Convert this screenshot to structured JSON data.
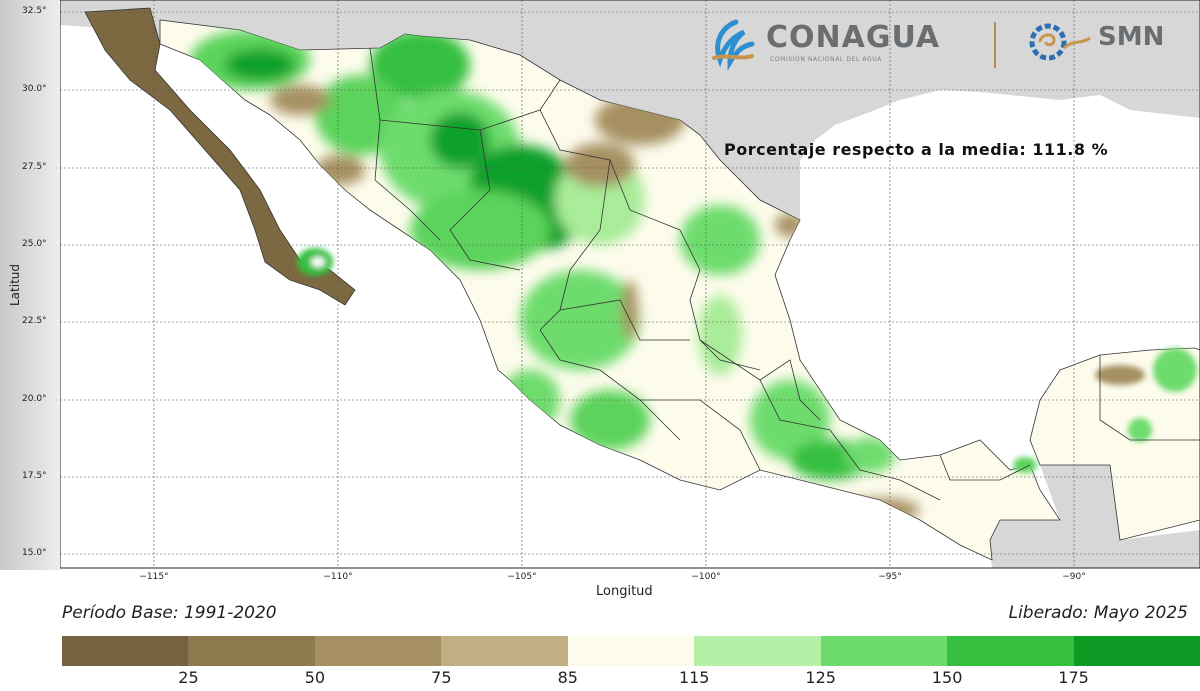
{
  "header": {
    "conagua": "CONAGUA",
    "conagua_subtitle": "COMISIÓN NACIONAL DEL AGUA",
    "smn": "SMN"
  },
  "annotation": "Porcentaje respecto a la media: 111.8 %",
  "axes": {
    "ylabel": "Latitud",
    "xlabel": "Longitud",
    "lat_ticks": [
      "32.5°",
      "30.0°",
      "27.5°",
      "25.0°",
      "22.5°",
      "20.0°",
      "17.5°",
      "15.0°"
    ],
    "lon_ticks": [
      "−115°",
      "−110°",
      "−105°",
      "−100°",
      "−95°",
      "−90°"
    ]
  },
  "footer": {
    "base_period": "Período Base: 1991-2020",
    "released": "Liberado: Mayo 2025"
  },
  "legend": {
    "ticks": [
      "25",
      "50",
      "75",
      "85",
      "115",
      "125",
      "150",
      "175"
    ],
    "colors": [
      "#76623e",
      "#8f7a4f",
      "#a69062",
      "#c2ae85",
      "#fdfcec",
      "#b6f0a7",
      "#6ddc6d",
      "#35bf3f",
      "#0e9b25"
    ]
  },
  "colors": {
    "ocean": "#ffffff",
    "other_land": "#d7d7d7",
    "normal": "#fdfcec",
    "dry_strong": "#7c6841",
    "dry_mid": "#a69062",
    "wet_light": "#a9ec99",
    "wet_mid": "#5cd35c",
    "wet_strong": "#11a02a"
  },
  "navigation": {
    "prev_icon": "chevron-left-icon",
    "next_icon": "chevron-right-icon"
  }
}
